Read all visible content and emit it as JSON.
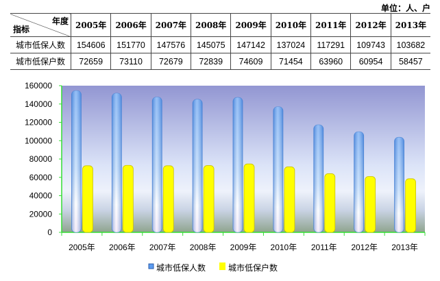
{
  "unit_label": "单位：人、户",
  "table": {
    "corner_top": "年度",
    "corner_bottom": "指标",
    "years": [
      "2005年",
      "2006年",
      "2007年",
      "2008年",
      "2009年",
      "2010年",
      "2011年",
      "2012年",
      "2013年"
    ],
    "rows": [
      {
        "label": "城市低保人数",
        "values": [
          "154606",
          "151770",
          "147576",
          "145075",
          "147142",
          "137024",
          "117291",
          "109743",
          "103682"
        ]
      },
      {
        "label": "城市低保户数",
        "values": [
          "72659",
          "73110",
          "72679",
          "72839",
          "74609",
          "71454",
          "63960",
          "60954",
          "58457"
        ]
      }
    ]
  },
  "chart_data": {
    "type": "bar",
    "categories": [
      "2005年",
      "2006年",
      "2007年",
      "2008年",
      "2009年",
      "2010年",
      "2011年",
      "2012年",
      "2013年"
    ],
    "series": [
      {
        "name": "城市低保人数",
        "values": [
          154606,
          151770,
          147576,
          145075,
          147142,
          137024,
          117291,
          109743,
          103682
        ],
        "color": "#5b9bf0"
      },
      {
        "name": "城市低保户数",
        "values": [
          72659,
          73110,
          72679,
          72839,
          74609,
          71454,
          63960,
          60954,
          58457
        ],
        "color": "#ffff00"
      }
    ],
    "ylim": [
      0,
      160000
    ],
    "yticks": [
      "0",
      "20000",
      "40000",
      "60000",
      "80000",
      "100000",
      "120000",
      "140000",
      "160000"
    ],
    "legend": "bottom"
  }
}
